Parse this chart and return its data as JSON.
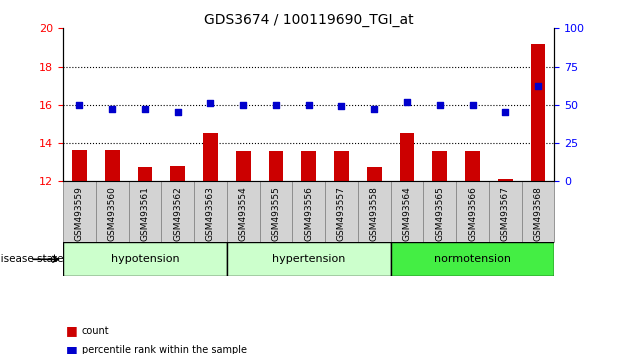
{
  "title": "GDS3674 / 100119690_TGI_at",
  "samples": [
    "GSM493559",
    "GSM493560",
    "GSM493561",
    "GSM493562",
    "GSM493563",
    "GSM493554",
    "GSM493555",
    "GSM493556",
    "GSM493557",
    "GSM493558",
    "GSM493564",
    "GSM493565",
    "GSM493566",
    "GSM493567",
    "GSM493568"
  ],
  "count_values": [
    13.65,
    13.65,
    12.75,
    12.8,
    14.55,
    13.6,
    13.6,
    13.6,
    13.6,
    12.75,
    14.55,
    13.6,
    13.6,
    12.1,
    19.2
  ],
  "percentile_values": [
    50,
    47,
    47,
    45,
    51,
    50,
    50,
    50,
    49,
    47,
    52,
    50,
    50,
    45,
    62
  ],
  "ylim_left": [
    12,
    20
  ],
  "ylim_right": [
    0,
    100
  ],
  "yticks_left": [
    12,
    14,
    16,
    18,
    20
  ],
  "yticks_right": [
    0,
    25,
    50,
    75,
    100
  ],
  "group_info": [
    {
      "name": "hypotension",
      "start": 0,
      "end": 4,
      "color": "#CCFFCC"
    },
    {
      "name": "hypertension",
      "start": 5,
      "end": 9,
      "color": "#CCFFCC"
    },
    {
      "name": "normotension",
      "start": 10,
      "end": 14,
      "color": "#44EE44"
    }
  ],
  "group_label": "disease state",
  "bar_color": "#CC0000",
  "dot_color": "#0000CC",
  "tick_label_fontsize": 6.5,
  "title_fontsize": 10,
  "legend_items": [
    {
      "color": "#CC0000",
      "label": "count"
    },
    {
      "color": "#0000CC",
      "label": "percentile rank within the sample"
    }
  ]
}
